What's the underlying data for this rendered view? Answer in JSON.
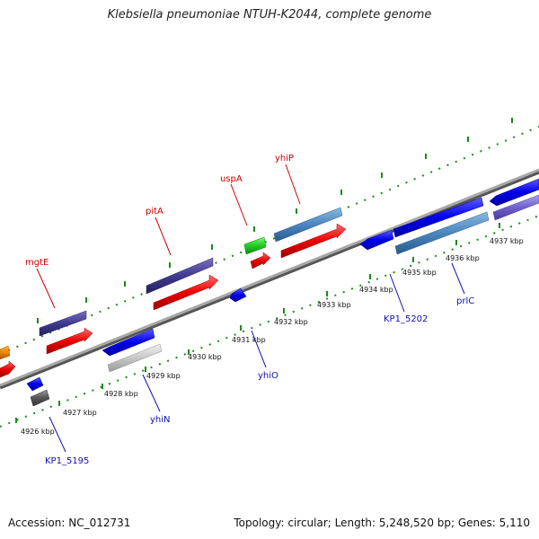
{
  "header": {
    "title": "Klebsiella pneumoniae NTUH-K2044, complete genome"
  },
  "footer": {
    "accession": "Accession: NC_012731",
    "summary": "Topology: circular; Length: 5,248,520 bp; Genes: 5,110"
  },
  "colors": {
    "backbone": "#888888",
    "tick": "#1a8a1a",
    "label_top": "#cc0000",
    "label_bottom": "#1010b0"
  },
  "scale_labels": [
    "4926 kbp",
    "4927 kbp",
    "4928 kbp",
    "4929 kbp",
    "4930 kbp",
    "4931 kbp",
    "4932 kbp",
    "4933 kbp",
    "4934 kbp",
    "4935 kbp",
    "4936 kbp",
    "4937 kbp"
  ],
  "gene_labels_top": [
    "mgtE",
    "pitA",
    "uspA",
    "yhiP"
  ],
  "gene_labels_bottom": [
    "KP1_5195",
    "yhiN",
    "yhiO",
    "KP1_5202",
    "prlC"
  ]
}
